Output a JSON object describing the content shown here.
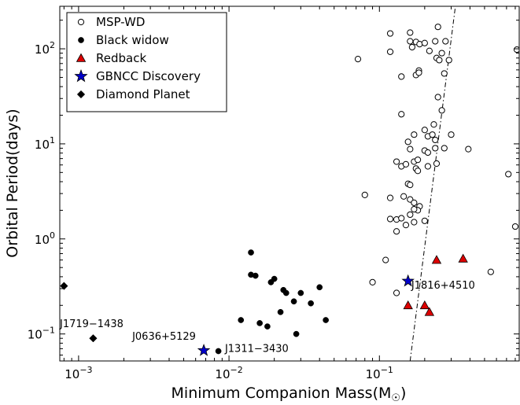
{
  "chart_data": {
    "type": "scatter",
    "title": "",
    "xlabel": "Minimum Companion Mass(M",
    "xlabel_sub": "☉",
    "xlabel_close": ")",
    "ylabel": "Orbital Period(days)",
    "xscale": "log",
    "yscale": "log",
    "xlim": [
      0.00075,
      0.85
    ],
    "ylim": [
      0.052,
      280
    ],
    "xticks": [
      {
        "value": 0.001,
        "base": "10",
        "exp": "−3"
      },
      {
        "value": 0.01,
        "base": "10",
        "exp": "−2"
      },
      {
        "value": 0.1,
        "base": "10",
        "exp": "−1"
      }
    ],
    "yticks": [
      {
        "value": 0.1,
        "base": "10",
        "exp": "−1"
      },
      {
        "value": 1,
        "base": "10",
        "exp": "0"
      },
      {
        "value": 10,
        "base": "10",
        "exp": "1"
      },
      {
        "value": 100,
        "base": "10",
        "exp": "2"
      }
    ],
    "grid": false,
    "legend_position": "top-left",
    "series": [
      {
        "name": "MSP-WD",
        "marker": "open-circle",
        "color": "#000000",
        "points": [
          [
            0.072,
            78
          ],
          [
            0.118,
            145
          ],
          [
            0.118,
            93
          ],
          [
            0.16,
            148
          ],
          [
            0.16,
            120
          ],
          [
            0.165,
            104
          ],
          [
            0.175,
            118
          ],
          [
            0.185,
            112
          ],
          [
            0.2,
            115
          ],
          [
            0.215,
            95
          ],
          [
            0.235,
            120
          ],
          [
            0.245,
            170
          ],
          [
            0.24,
            80
          ],
          [
            0.26,
            90
          ],
          [
            0.275,
            120
          ],
          [
            0.29,
            76
          ],
          [
            0.25,
            76
          ],
          [
            0.27,
            55
          ],
          [
            0.14,
            51
          ],
          [
            0.175,
            53
          ],
          [
            0.183,
            59
          ],
          [
            0.183,
            56
          ],
          [
            0.245,
            31
          ],
          [
            0.26,
            22.5
          ],
          [
            0.14,
            20.5
          ],
          [
            0.17,
            12.5
          ],
          [
            0.21,
            12
          ],
          [
            0.23,
            16
          ],
          [
            0.2,
            14
          ],
          [
            0.225,
            12.5
          ],
          [
            0.235,
            11
          ],
          [
            0.3,
            12.5
          ],
          [
            0.155,
            10.5
          ],
          [
            0.16,
            8.8
          ],
          [
            0.17,
            6.5
          ],
          [
            0.18,
            6.8
          ],
          [
            0.2,
            8.5
          ],
          [
            0.21,
            8.1
          ],
          [
            0.235,
            9.0
          ],
          [
            0.27,
            9.0
          ],
          [
            0.39,
            8.8
          ],
          [
            0.13,
            6.5
          ],
          [
            0.14,
            5.8
          ],
          [
            0.15,
            6.1
          ],
          [
            0.175,
            5.5
          ],
          [
            0.18,
            5.2
          ],
          [
            0.21,
            5.8
          ],
          [
            0.24,
            6.2
          ],
          [
            0.155,
            3.8
          ],
          [
            0.16,
            3.7
          ],
          [
            0.08,
            2.9
          ],
          [
            0.118,
            2.7
          ],
          [
            0.145,
            2.8
          ],
          [
            0.16,
            2.6
          ],
          [
            0.17,
            2.4
          ],
          [
            0.185,
            2.2
          ],
          [
            0.18,
            2.0
          ],
          [
            0.17,
            2.05
          ],
          [
            0.16,
            1.8
          ],
          [
            0.13,
            1.6
          ],
          [
            0.14,
            1.65
          ],
          [
            0.15,
            1.4
          ],
          [
            0.17,
            1.5
          ],
          [
            0.118,
            1.62
          ],
          [
            0.13,
            1.2
          ],
          [
            0.2,
            1.55
          ],
          [
            0.11,
            0.6
          ],
          [
            0.09,
            0.35
          ],
          [
            0.13,
            0.27
          ],
          [
            0.55,
            0.45
          ],
          [
            0.72,
            4.8
          ],
          [
            0.8,
            1.35
          ],
          [
            0.82,
            98
          ]
        ]
      },
      {
        "name": "Black widow",
        "marker": "filled-circle",
        "color": "#000000",
        "points": [
          [
            0.014,
            0.72
          ],
          [
            0.014,
            0.42
          ],
          [
            0.015,
            0.41
          ],
          [
            0.019,
            0.35
          ],
          [
            0.02,
            0.38
          ],
          [
            0.023,
            0.29
          ],
          [
            0.024,
            0.27
          ],
          [
            0.027,
            0.22
          ],
          [
            0.03,
            0.27
          ],
          [
            0.035,
            0.21
          ],
          [
            0.04,
            0.31
          ],
          [
            0.012,
            0.14
          ],
          [
            0.016,
            0.13
          ],
          [
            0.018,
            0.12
          ],
          [
            0.022,
            0.17
          ],
          [
            0.028,
            0.1
          ],
          [
            0.044,
            0.14
          ]
        ]
      },
      {
        "name": "Redback",
        "marker": "triangle",
        "color": "#dd0000",
        "points": [
          [
            0.24,
            0.6
          ],
          [
            0.36,
            0.62
          ],
          [
            0.155,
            0.2
          ],
          [
            0.2,
            0.2
          ],
          [
            0.215,
            0.17
          ]
        ]
      },
      {
        "name": "GBNCC Discovery",
        "marker": "star",
        "color": "#0000cc",
        "points": [
          [
            0.0068,
            0.067
          ],
          [
            0.155,
            0.36
          ]
        ]
      },
      {
        "name": "Diamond Planet",
        "marker": "diamond",
        "color": "#000000",
        "points": [
          [
            0.0008,
            0.32
          ],
          [
            0.00125,
            0.09
          ]
        ]
      }
    ],
    "extra_points": [
      {
        "marker": "filled-circle",
        "x": 0.0085,
        "y": 0.066
      }
    ],
    "trend_line": {
      "style": "dash-dot",
      "points": [
        [
          0.16,
          0.052
        ],
        [
          0.32,
          280
        ]
      ]
    },
    "annotations": [
      {
        "text": "J1719−1438",
        "x": 0.00075,
        "y": 0.118,
        "anchor": "start"
      },
      {
        "text": "J0636+5129",
        "x": 0.0037,
        "y": 0.087,
        "anchor": "middle"
      },
      {
        "text": "J1311−3430",
        "x": 0.0094,
        "y": 0.065,
        "anchor": "start"
      },
      {
        "text": "J1816+4510",
        "x": 0.163,
        "y": 0.3,
        "anchor": "start"
      }
    ]
  }
}
